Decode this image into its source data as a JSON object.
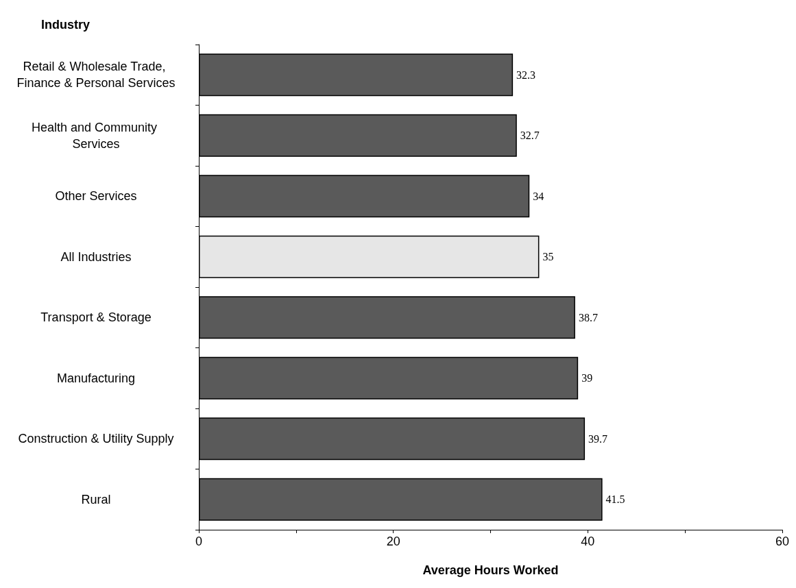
{
  "chart_data": {
    "type": "bar",
    "orientation": "horizontal",
    "ylabel": "Industry",
    "xlabel": "Average Hours Worked",
    "categories": [
      "Retail & Wholesale Trade, Finance & Personal Services",
      "Health and Community Services",
      "Other Services",
      "All Industries",
      "Transport & Storage",
      "Manufacturing",
      "Construction & Utility Supply",
      "Rural"
    ],
    "values": [
      32.3,
      32.7,
      34,
      35,
      38.7,
      39,
      39.7,
      41.5
    ],
    "colors": [
      "#5a5a5a",
      "#5a5a5a",
      "#5a5a5a",
      "#e6e6e6",
      "#5a5a5a",
      "#5a5a5a",
      "#5a5a5a",
      "#5a5a5a"
    ],
    "xlim": [
      0,
      60
    ],
    "xticks": [
      0,
      {
        "value": 10,
        "label": null
      },
      20,
      {
        "value": 30,
        "label": null
      },
      40,
      {
        "value": 50,
        "label": null
      },
      60
    ],
    "data_labels": true,
    "grid": false
  }
}
